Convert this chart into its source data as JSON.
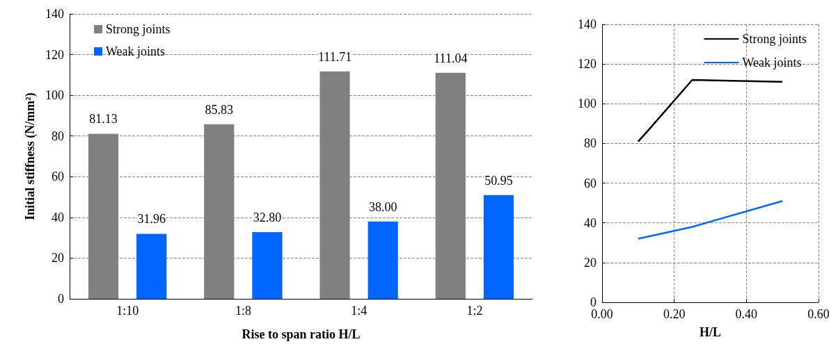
{
  "chart_data": [
    {
      "type": "bar",
      "categories": [
        "1:10",
        "1:8",
        "1:4",
        "1:2"
      ],
      "xlabel": "Rise to span ratio H/L",
      "ylabel": "Initial stiffness (N/mm²)",
      "series": [
        {
          "name": "Strong joints",
          "color": "#808080",
          "values": [
            81.13,
            85.83,
            111.71,
            111.04
          ],
          "value_labels": [
            "81.13",
            "85.83",
            "111.71",
            "111.04"
          ]
        },
        {
          "name": "Weak joints",
          "color": "#0066ff",
          "values": [
            31.96,
            32.8,
            38.0,
            50.95
          ],
          "value_labels": [
            "31.96",
            "32.80",
            "38.00",
            "50.95"
          ]
        }
      ],
      "ylim": [
        0,
        140
      ],
      "yticks": [
        0,
        20,
        40,
        60,
        80,
        100,
        120,
        140
      ],
      "grid": "y",
      "legend": "top left"
    },
    {
      "type": "line",
      "xlabel": "H/L",
      "x": [
        0.1,
        0.125,
        0.25,
        0.5
      ],
      "series": [
        {
          "name": "Strong joints",
          "color": "#000000",
          "values": [
            81,
            86,
            112,
            111
          ]
        },
        {
          "name": "Weak joints",
          "color": "#0066ff",
          "values": [
            32,
            33,
            38,
            51
          ]
        }
      ],
      "xlim": [
        0,
        0.6
      ],
      "xticks": [
        {
          "value": 0,
          "label": "0.00"
        },
        {
          "value": 0.2,
          "label": "0.20"
        },
        {
          "value": 0.4,
          "label": "0.40"
        },
        {
          "value": 0.6,
          "label": "0.60"
        }
      ],
      "ylim": [
        0,
        140
      ],
      "yticks": [
        0,
        20,
        40,
        60,
        80,
        100,
        120,
        140
      ],
      "grid": true,
      "legend": "top right",
      "marker": "none",
      "line_style": "solid"
    }
  ]
}
